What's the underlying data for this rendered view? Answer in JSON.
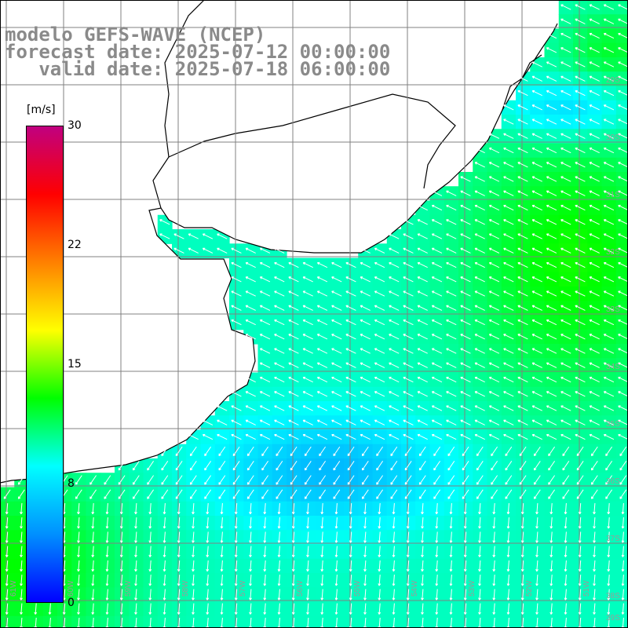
{
  "title": {
    "line1": "modelo GEFS-WAVE (NCEP)",
    "line2": "forecast date: 2025-07-12 00:00:00",
    "line3": "   valid date: 2025-07-18 06:00:00"
  },
  "colorbar": {
    "unit": "[m/s]",
    "ticks": [
      "30",
      "22",
      "15",
      "8",
      "0"
    ],
    "min": 0,
    "max": 30,
    "colors": [
      "#0000ff",
      "#0090ff",
      "#00ffff",
      "#00ff00",
      "#ffff00",
      "#ff8000",
      "#ff0000",
      "#c00080"
    ]
  },
  "map": {
    "lat_labels": [
      "29S",
      "30S",
      "31S",
      "32S",
      "33S",
      "34S",
      "35S",
      "36S",
      "37S",
      "38S",
      "39S",
      "40S"
    ],
    "lon_labels": [
      "61W",
      "60W",
      "59W",
      "58W",
      "57W",
      "56W",
      "55W",
      "54W",
      "53W",
      "52W",
      "51W"
    ],
    "lat_range": [
      -40.5,
      -29.0
    ],
    "lon_range": [
      -62.0,
      -51.2
    ],
    "land_color": "#ffffff",
    "grid_color": "#808080",
    "arrow_color": "#ffffff"
  }
}
